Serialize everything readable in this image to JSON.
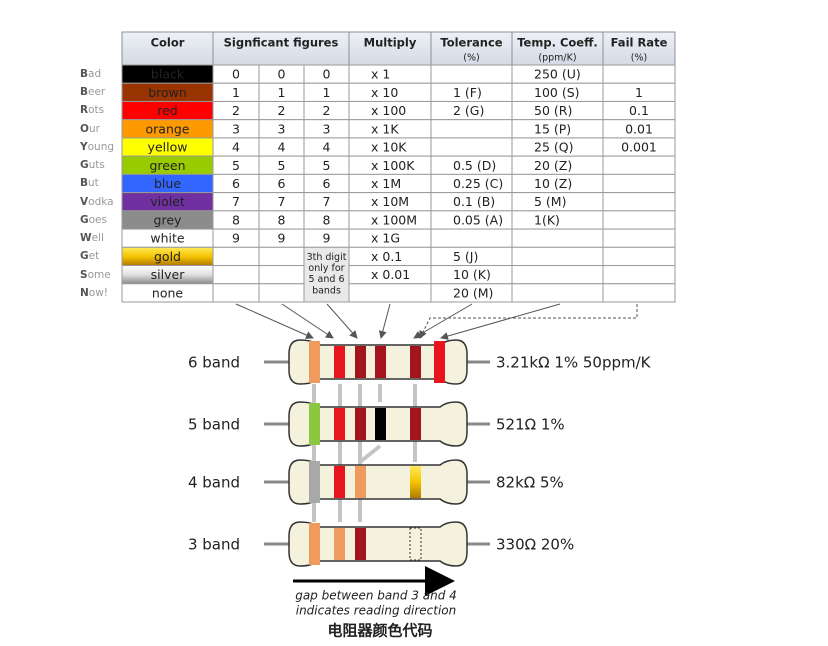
{
  "header": {
    "color": "Color",
    "figures": "Signficant figures",
    "multiply": "Multiply",
    "tolerance": "Tolerance",
    "tolerance_unit": "(%)",
    "temp": "Temp. Coeff.",
    "temp_unit": "(ppm/K)",
    "fail": "Fail Rate",
    "fail_unit": "(%)"
  },
  "rows": [
    {
      "mnemonic": "Bad",
      "color": "black",
      "swatch": "#000000",
      "digits": [
        0,
        0,
        0
      ],
      "multiply": "x 1",
      "tolerance": null,
      "temp": "250 (U)",
      "fail": null
    },
    {
      "mnemonic": "Beer",
      "color": "brown",
      "swatch": "#993300",
      "digits": [
        1,
        1,
        1
      ],
      "multiply": "x 10",
      "tolerance": "1 (F)",
      "temp": "100 (S)",
      "fail": 1
    },
    {
      "mnemonic": "Rots",
      "color": "red",
      "swatch": "#ff0000",
      "digits": [
        2,
        2,
        2
      ],
      "multiply": "x 100",
      "tolerance": "2 (G)",
      "temp": "50 (R)",
      "fail": 0.1
    },
    {
      "mnemonic": "Our",
      "color": "orange",
      "swatch": "#ff9900",
      "digits": [
        3,
        3,
        3
      ],
      "multiply": "x 1K",
      "tolerance": null,
      "temp": "15 (P)",
      "fail": 0.01
    },
    {
      "mnemonic": "Young",
      "color": "yellow",
      "swatch": "#ffff00",
      "digits": [
        4,
        4,
        4
      ],
      "multiply": "x 10K",
      "tolerance": null,
      "temp": "25 (Q)",
      "fail": 0.001
    },
    {
      "mnemonic": "Guts",
      "color": "green",
      "swatch": "#99cc00",
      "digits": [
        5,
        5,
        5
      ],
      "multiply": "x 100K",
      "tolerance": "0.5 (D)",
      "temp": "20 (Z)",
      "fail": null
    },
    {
      "mnemonic": "But",
      "color": "blue",
      "swatch": "#3366ff",
      "digits": [
        6,
        6,
        6
      ],
      "multiply": "x 1M",
      "tolerance": "0.25 (C)",
      "temp": "10 (Z)",
      "fail": null
    },
    {
      "mnemonic": "Vodka",
      "color": "violet",
      "swatch": "#7030a0",
      "digits": [
        7,
        7,
        7
      ],
      "multiply": "x 10M",
      "tolerance": "0.1 (B)",
      "temp": "5 (M)",
      "fail": null
    },
    {
      "mnemonic": "Goes",
      "color": "grey",
      "swatch": "#8c8c8c",
      "digits": [
        8,
        8,
        8
      ],
      "multiply": "x 100M",
      "tolerance": "0.05 (A)",
      "temp": "1(K)",
      "fail": null
    },
    {
      "mnemonic": "Well",
      "color": "white",
      "swatch": "#ffffff",
      "digits": [
        9,
        9,
        9
      ],
      "multiply": "x 1G",
      "tolerance": null,
      "temp": null,
      "fail": null
    },
    {
      "mnemonic": "Get",
      "color": "gold",
      "swatch": "url(#gold)",
      "digits": [
        null,
        null,
        null
      ],
      "multiply": "x 0.1",
      "tolerance": "5 (J)",
      "temp": null,
      "fail": null
    },
    {
      "mnemonic": "Some",
      "color": "silver",
      "swatch": "url(#silver)",
      "digits": [
        null,
        null,
        null
      ],
      "multiply": "x 0.01",
      "tolerance": "10 (K)",
      "temp": null,
      "fail": null
    },
    {
      "mnemonic": "Now!",
      "color": "none",
      "swatch": "#ffffff",
      "digits": [
        null,
        null,
        null
      ],
      "multiply": null,
      "tolerance": "20 (M)",
      "temp": null,
      "fail": null
    }
  ],
  "note": [
    "3th digit",
    "only for",
    "5 and 6",
    "bands"
  ],
  "resistors": [
    {
      "label": "6 band",
      "value": "3.21kΩ 1% 50ppm/K"
    },
    {
      "label": "5 band",
      "value": "521Ω 1%"
    },
    {
      "label": "4 band",
      "value": "82kΩ 5%"
    },
    {
      "label": "3 band",
      "value": "330Ω 20%"
    }
  ],
  "caption": [
    "gap between band 3 and 4",
    "indicates reading direction"
  ],
  "title": "电阻器颜色代码"
}
